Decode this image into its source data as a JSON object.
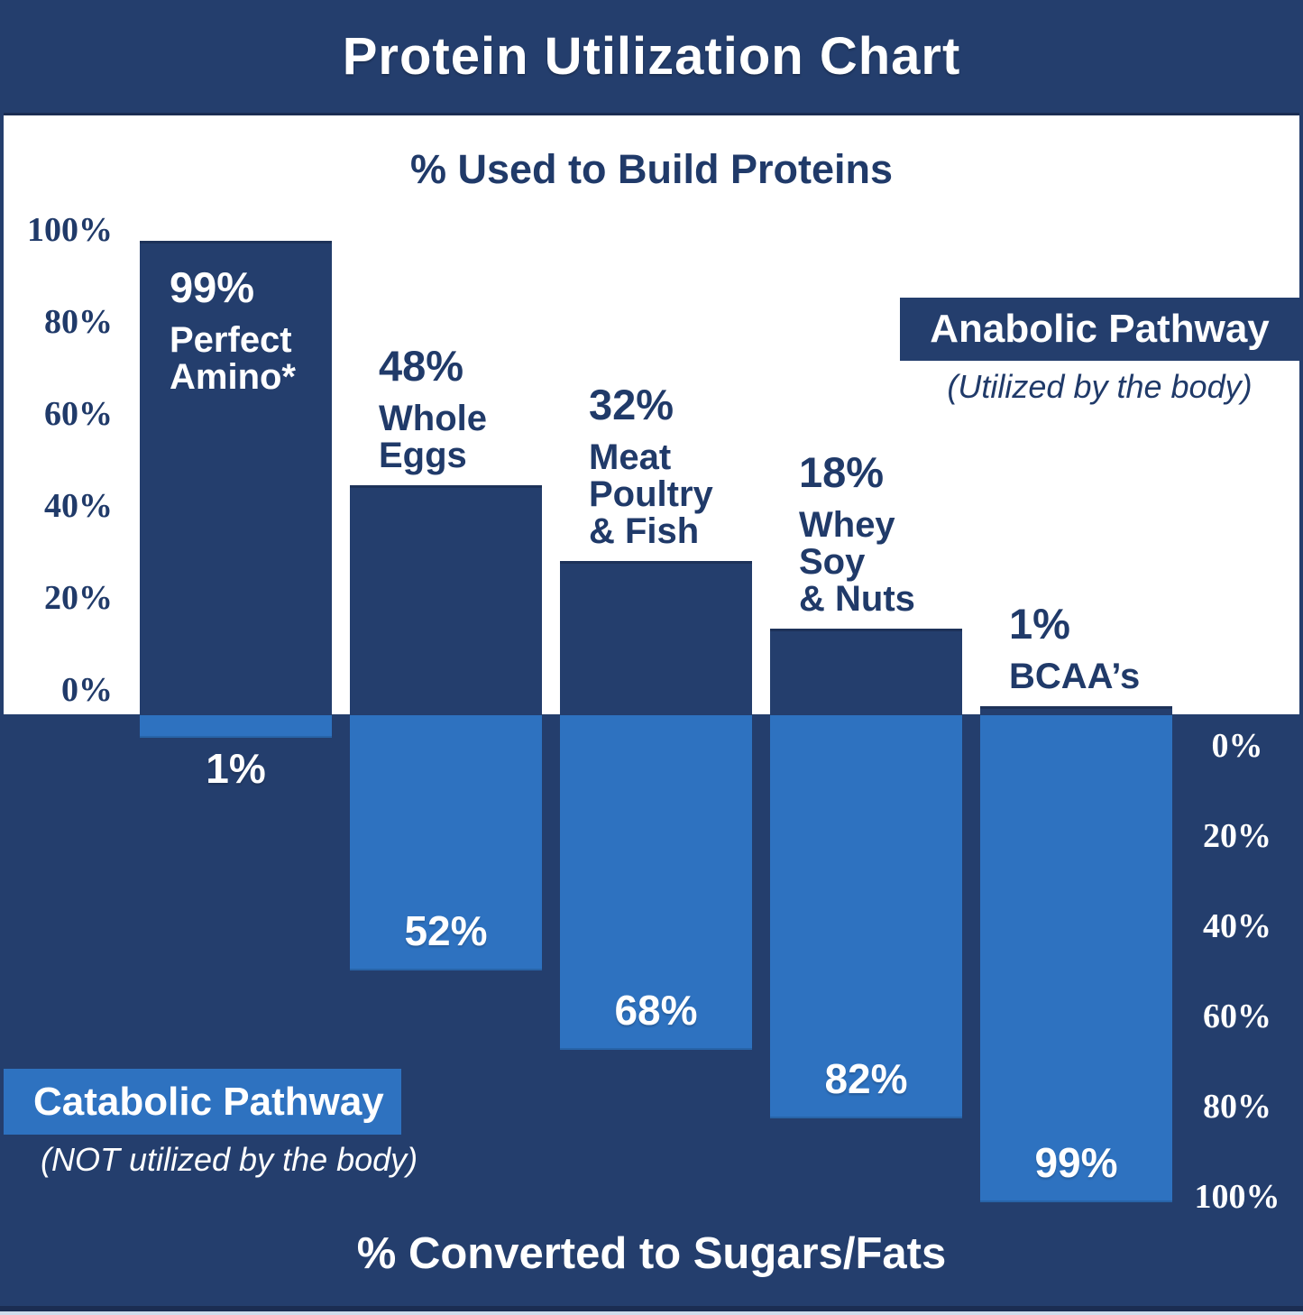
{
  "header": {
    "title": "Protein Utilization Chart"
  },
  "top_section": {
    "subtitle": "% Used to Build Proteins",
    "axis_ticks": [
      "100%",
      "80%",
      "60%",
      "40%",
      "20%",
      "0%"
    ],
    "legend": {
      "label": "Anabolic Pathway",
      "note": "(Utilized by the body)"
    }
  },
  "bottom_section": {
    "title": "% Converted to Sugars/Fats",
    "axis_ticks": [
      "0%",
      "20%",
      "40%",
      "60%",
      "80%",
      "100%"
    ],
    "legend": {
      "label": "Catabolic Pathway",
      "note": "(NOT utilized by the body)"
    }
  },
  "bars": [
    {
      "value_label": "99%",
      "name_lines": [
        "Perfect",
        "Amino*"
      ],
      "catabolic_label": "1%",
      "label_inside": true
    },
    {
      "value_label": "48%",
      "name_lines": [
        "Whole",
        "Eggs"
      ],
      "catabolic_label": "52%",
      "label_inside": false
    },
    {
      "value_label": "32%",
      "name_lines": [
        "Meat",
        "Poultry",
        "& Fish"
      ],
      "catabolic_label": "68%",
      "label_inside": false
    },
    {
      "value_label": "18%",
      "name_lines": [
        "Whey",
        "Soy",
        "& Nuts"
      ],
      "catabolic_label": "82%",
      "label_inside": false
    },
    {
      "value_label": "1%",
      "name_lines": [
        "BCAA’s"
      ],
      "catabolic_label": "99%",
      "label_inside": false
    }
  ],
  "chart_data": {
    "type": "bar",
    "orientation": "diverging-vertical",
    "title": "Protein Utilization Chart",
    "top_axis_label": "% Used to Build Proteins",
    "bottom_axis_label": "% Converted to Sugars/Fats",
    "categories": [
      "Perfect Amino*",
      "Whole Eggs",
      "Meat Poultry & Fish",
      "Whey Soy & Nuts",
      "BCAA's"
    ],
    "series": [
      {
        "name": "Anabolic Pathway (Utilized by the body)",
        "values": [
          99,
          48,
          32,
          18,
          1
        ]
      },
      {
        "name": "Catabolic Pathway (NOT utilized by the body)",
        "values": [
          1,
          52,
          68,
          82,
          99
        ]
      }
    ],
    "axis_range": [
      0,
      100
    ],
    "grid": false,
    "legend_position": {
      "anabolic": "top-right",
      "catabolic": "bottom-left"
    },
    "colors": {
      "anabolic": "#243E6D",
      "catabolic": "#2E72C0",
      "background_top": "#FFFFFF",
      "background_bottom": "#243E6D"
    }
  }
}
